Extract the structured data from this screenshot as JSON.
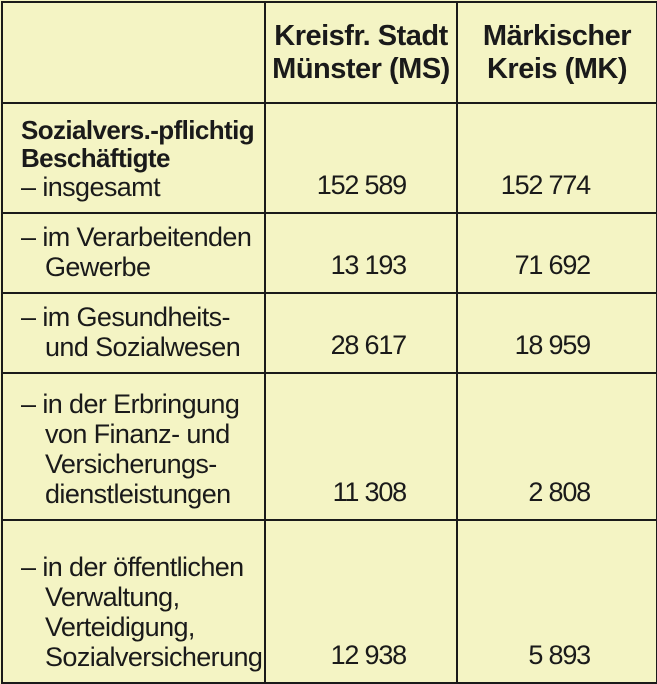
{
  "header": {
    "col_ms": [
      "Kreisfr. Stadt",
      "Münster (MS)"
    ],
    "col_mk": [
      "Märkischer",
      "Kreis (MK)"
    ]
  },
  "rows": [
    {
      "label_bold": [
        "Sozialvers.-pflichtig",
        "Beschäftigte"
      ],
      "label": [
        "– insgesamt"
      ],
      "ms": "152 589",
      "mk": "152 774"
    },
    {
      "label": [
        "– im Verarbeitenden",
        "Gewerbe"
      ],
      "ms": "13 193",
      "mk": "71 692"
    },
    {
      "label": [
        "– im Gesundheits-",
        "und Sozialwesen"
      ],
      "ms": "28 617",
      "mk": "18 959"
    },
    {
      "label": [
        "– in der Erbringung",
        "von Finanz- und",
        "Versicherungs-",
        "dienstleistungen"
      ],
      "ms": "11 308",
      "mk": "2 808"
    },
    {
      "label": [
        "– in der öffentlichen",
        "Verwaltung,",
        "Verteidigung,",
        "Sozialversicherung"
      ],
      "ms": "12 938",
      "mk": "5 893"
    }
  ]
}
